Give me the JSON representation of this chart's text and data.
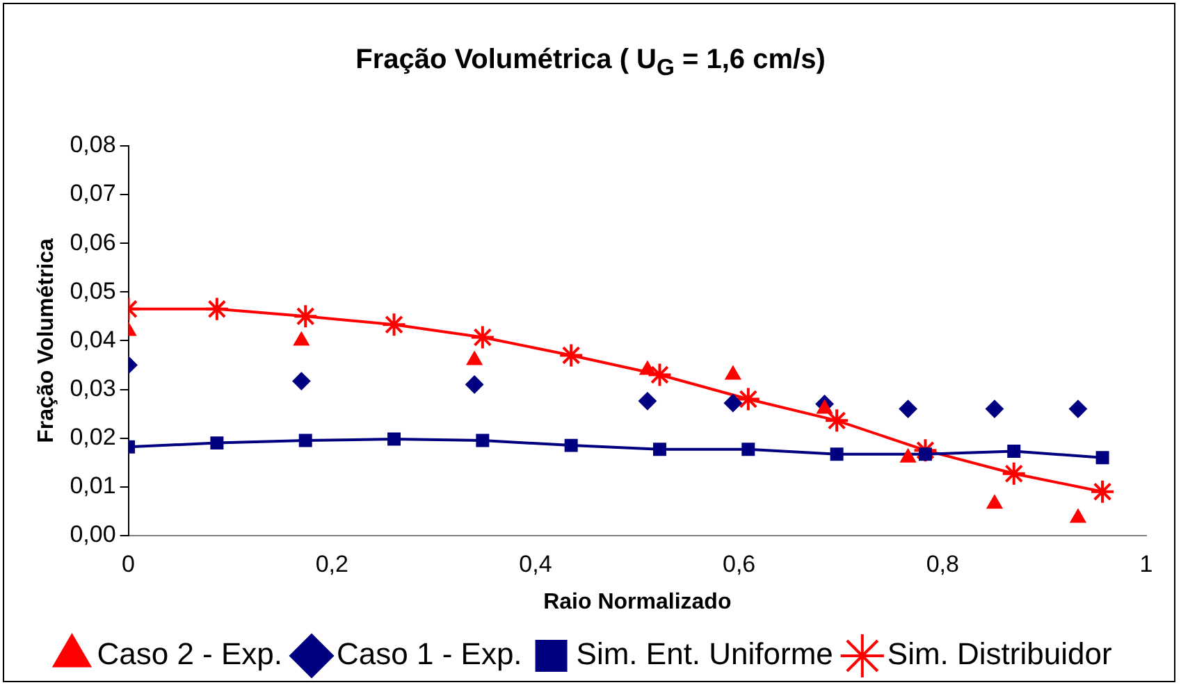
{
  "chart_data": {
    "type": "scatter",
    "title": "Fração Volumétrica ( U$_{G}$ = 1,6 cm/s)",
    "xlabel": "Raio Normalizado",
    "ylabel": "Fração Volumétrica",
    "xlim": [
      0,
      1
    ],
    "xticks": [
      0,
      {
        "value": 0.2,
        "label": "0,2"
      },
      {
        "value": 0.4,
        "label": "0,4"
      },
      {
        "value": 0.6,
        "label": "0,6"
      },
      {
        "value": 0.8,
        "label": "0,8"
      },
      1
    ],
    "ylim": [
      0,
      0.08
    ],
    "yticks": [
      {
        "value": 0,
        "label": "0,00"
      },
      {
        "value": 0.01,
        "label": "0,01"
      },
      {
        "value": 0.02,
        "label": "0,02"
      },
      {
        "value": 0.03,
        "label": "0,03"
      },
      {
        "value": 0.04,
        "label": "0,04"
      },
      {
        "value": 0.05,
        "label": "0,05"
      },
      {
        "value": 0.06,
        "label": "0,06"
      },
      {
        "value": 0.07,
        "label": "0,07"
      },
      {
        "value": 0.08,
        "label": "0,08"
      }
    ],
    "grid": false,
    "legend": "bottom",
    "series": [
      {
        "name": "Caso 1 - Exp.",
        "type": "scatter",
        "marker": "diamond",
        "color": "#000080",
        "x": [
          0,
          0.17,
          0.34,
          0.51,
          0.594,
          0.684,
          0.766,
          0.851,
          0.933
        ],
        "values": [
          0.035,
          0.0317,
          0.031,
          0.0276,
          0.0272,
          0.027,
          0.026,
          0.026,
          0.026
        ]
      },
      {
        "name": "Sim. Ent. Uniforme",
        "type": "line",
        "marker": "square",
        "color": "#000080",
        "x": [
          0,
          0.087,
          0.174,
          0.261,
          0.348,
          0.435,
          0.522,
          0.609,
          0.696,
          0.783,
          0.87,
          0.957
        ],
        "values": [
          0.0182,
          0.019,
          0.0195,
          0.0198,
          0.0195,
          0.0185,
          0.0177,
          0.0177,
          0.0167,
          0.0167,
          0.0173,
          0.016
        ]
      },
      {
        "name": "Caso 2 - Exp.",
        "type": "scatter",
        "marker": "triangle",
        "color": "#ff0000",
        "x": [
          0,
          0.17,
          0.34,
          0.51,
          0.594,
          0.684,
          0.766,
          0.851,
          0.933
        ],
        "values": [
          0.042,
          0.04,
          0.036,
          0.034,
          0.033,
          0.026,
          0.016,
          0.0065,
          0.0036
        ]
      },
      {
        "name": "Sim. Distribuidor",
        "type": "line",
        "marker": "cross",
        "color": "#ff0000",
        "x": [
          0,
          0.087,
          0.174,
          0.261,
          0.348,
          0.435,
          0.522,
          0.609,
          0.696,
          0.783,
          0.87,
          0.957
        ],
        "values": [
          0.0465,
          0.0465,
          0.045,
          0.0433,
          0.0407,
          0.037,
          0.033,
          0.028,
          0.0236,
          0.0175,
          0.0127,
          0.009
        ]
      }
    ]
  }
}
